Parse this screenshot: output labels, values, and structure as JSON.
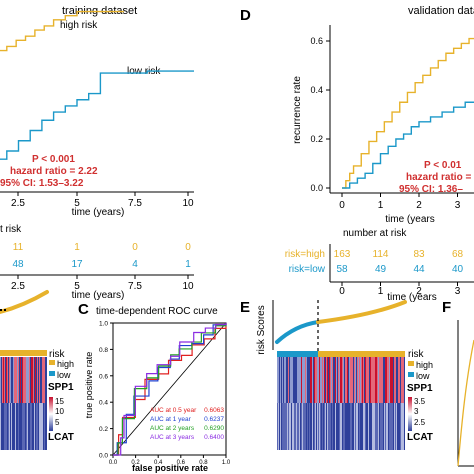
{
  "colors": {
    "high": "#e7b22b",
    "low": "#1b98c9",
    "red": "#d03030",
    "axis": "#000000",
    "heat_low": "#2e3f9a",
    "heat_high": "#c8102e",
    "teal": "#00a2e8"
  },
  "panels": {
    "topleft": {
      "title": "training dataset",
      "high_label": "high risk",
      "low_label": "low risk",
      "stats": [
        "P < 0.001",
        "hazard ratio = 2.22",
        "95% CI: 1.53–3.22"
      ],
      "xticks": [
        "2.5",
        "5",
        "7.5",
        "10"
      ],
      "xlabel": "time (years)",
      "at_risk_title": "t risk",
      "at_risk_high": [
        "11",
        "1",
        "0",
        "0"
      ],
      "at_risk_low": [
        "48",
        "17",
        "4",
        "1"
      ],
      "at_risk_xticks": [
        "2.5",
        "5",
        "7.5",
        "10"
      ],
      "at_risk_xlabel": "time (years)"
    },
    "d": {
      "letter": "D",
      "title": "validation data",
      "ylabel": "recurrence rate",
      "yticks": [
        "0.0",
        "0.2",
        "0.4",
        "0.6"
      ],
      "xticks": [
        "0",
        "1",
        "2",
        "3"
      ],
      "xlabel": "time (years",
      "stats": [
        "P < 0.01",
        "hazard ratio =",
        "95% CI: 1.36–"
      ],
      "at_risk_title": "number at risk",
      "risk_high_label": "risk=high",
      "risk_low_label": "risk=low",
      "at_risk_high": [
        "163",
        "114",
        "83",
        "68"
      ],
      "at_risk_low": [
        "58",
        "49",
        "44",
        "40"
      ],
      "at_risk_xticks": [
        "0",
        "1",
        "2",
        "3"
      ],
      "at_risk_xlabel": "time (years"
    },
    "bottomleft": {
      "risk_label": "risk",
      "high_label": "high",
      "low_label": "low",
      "spp1_label": "SPP1",
      "scale_ticks": [
        "15",
        "10",
        "5"
      ],
      "lcat_label": "LCAT"
    },
    "c": {
      "letter": "C",
      "title": "time-dependent ROC curve",
      "ylabel": "true positive rate",
      "xlabel": "false positive rate",
      "yticks": [
        "1.0",
        "0.8",
        "0.6",
        "0.4",
        "0.2",
        "0.0"
      ],
      "xticks": [
        "0.0",
        "0.2",
        "0.4",
        "0.6",
        "0.8",
        "1.0"
      ],
      "legend": [
        {
          "label": "AUC at 0.5 year",
          "value": "0.6063",
          "color": "#e02020"
        },
        {
          "label": "AUC at 1 year",
          "value": "0.6237",
          "color": "#2040d0"
        },
        {
          "label": "AUC at 2 years",
          "value": "0.6290",
          "color": "#22a022"
        },
        {
          "label": "AUC at 3 years",
          "value": "0.6400",
          "color": "#8a2be2"
        }
      ],
      "extra_color": "#e6c800"
    },
    "e": {
      "letter": "E",
      "ylabel": "risk Scores",
      "risk_label": "risk",
      "high_label": "high",
      "low_label": "low",
      "spp1_label": "SPP1",
      "scale_ticks": [
        "3.5",
        "3",
        "2.5"
      ],
      "lcat_label": "LCAT"
    },
    "f": {
      "letter": "F"
    }
  },
  "chart_data": [
    {
      "type": "line",
      "title": "training dataset",
      "xlabel": "time (years)",
      "xlim": [
        0,
        10
      ],
      "series": [
        {
          "name": "high risk",
          "x": [
            0,
            0.3,
            0.6,
            1.0,
            1.3,
            1.6,
            2.0,
            2.4,
            2.8,
            3.2,
            3.6,
            4.0,
            4.5,
            5.0,
            6.0,
            7.0
          ],
          "y": [
            0.55,
            0.58,
            0.61,
            0.63,
            0.66,
            0.69,
            0.71,
            0.74,
            0.76,
            0.79,
            0.81,
            0.84,
            0.86,
            0.88,
            0.88,
            0.88
          ]
        },
        {
          "name": "low risk",
          "x": [
            0,
            0.5,
            1.0,
            1.5,
            2.0,
            2.5,
            3.0,
            3.5,
            4.0,
            4.5,
            5.0,
            5.5,
            6.0,
            7.0,
            8.0,
            9.0,
            10.0
          ],
          "y": [
            0.08,
            0.1,
            0.12,
            0.16,
            0.2,
            0.25,
            0.3,
            0.35,
            0.39,
            0.42,
            0.45,
            0.48,
            0.58,
            0.58,
            0.59,
            0.59,
            0.59
          ]
        }
      ]
    },
    {
      "type": "line",
      "title": "validation data",
      "ylabel": "recurrence rate",
      "xlabel": "time (years",
      "xlim": [
        0,
        3.5
      ],
      "ylim": [
        0,
        0.67
      ],
      "series": [
        {
          "name": "risk=high",
          "x": [
            0,
            0.1,
            0.2,
            0.3,
            0.5,
            0.7,
            0.9,
            1.1,
            1.3,
            1.5,
            1.7,
            1.9,
            2.1,
            2.3,
            2.5,
            2.7,
            2.9,
            3.1,
            3.3,
            3.5
          ],
          "y": [
            0,
            0.03,
            0.06,
            0.09,
            0.14,
            0.19,
            0.23,
            0.27,
            0.31,
            0.35,
            0.39,
            0.43,
            0.46,
            0.49,
            0.52,
            0.55,
            0.57,
            0.59,
            0.61,
            0.62
          ]
        },
        {
          "name": "risk=low",
          "x": [
            0,
            0.2,
            0.4,
            0.6,
            0.8,
            1.0,
            1.2,
            1.4,
            1.6,
            1.8,
            2.0,
            2.3,
            2.6,
            2.9,
            3.2,
            3.5
          ],
          "y": [
            0,
            0.02,
            0.04,
            0.06,
            0.1,
            0.14,
            0.17,
            0.2,
            0.22,
            0.25,
            0.27,
            0.29,
            0.31,
            0.33,
            0.35,
            0.37
          ]
        }
      ]
    },
    {
      "type": "line",
      "title": "time-dependent ROC curve",
      "xlabel": "false positive rate",
      "ylabel": "true positive rate",
      "xlim": [
        0,
        1
      ],
      "ylim": [
        0,
        1
      ],
      "series": [
        {
          "name": "AUC at 0.5 year",
          "x": [
            0,
            0.05,
            0.1,
            0.2,
            0.3,
            0.4,
            0.5,
            0.6,
            0.7,
            0.8,
            0.9,
            1.0
          ],
          "y": [
            0,
            0.15,
            0.3,
            0.42,
            0.55,
            0.62,
            0.7,
            0.78,
            0.85,
            0.9,
            0.96,
            1.0
          ]
        },
        {
          "name": "AUC at 1 year",
          "x": [
            0,
            0.05,
            0.1,
            0.2,
            0.3,
            0.4,
            0.5,
            0.6,
            0.7,
            0.8,
            0.9,
            1.0
          ],
          "y": [
            0,
            0.12,
            0.28,
            0.45,
            0.58,
            0.66,
            0.74,
            0.8,
            0.86,
            0.92,
            0.97,
            1.0
          ]
        },
        {
          "name": "AUC at 2 years",
          "x": [
            0,
            0.05,
            0.1,
            0.2,
            0.3,
            0.4,
            0.5,
            0.6,
            0.7,
            0.8,
            0.9,
            1.0
          ],
          "y": [
            0,
            0.1,
            0.25,
            0.48,
            0.6,
            0.68,
            0.75,
            0.82,
            0.88,
            0.93,
            0.97,
            1.0
          ]
        },
        {
          "name": "AUC at 3 years",
          "x": [
            0,
            0.05,
            0.1,
            0.2,
            0.3,
            0.4,
            0.5,
            0.6,
            0.7,
            0.8,
            0.9,
            1.0
          ],
          "y": [
            0,
            0.14,
            0.3,
            0.5,
            0.62,
            0.7,
            0.77,
            0.84,
            0.9,
            0.94,
            0.98,
            1.0
          ]
        }
      ]
    }
  ]
}
